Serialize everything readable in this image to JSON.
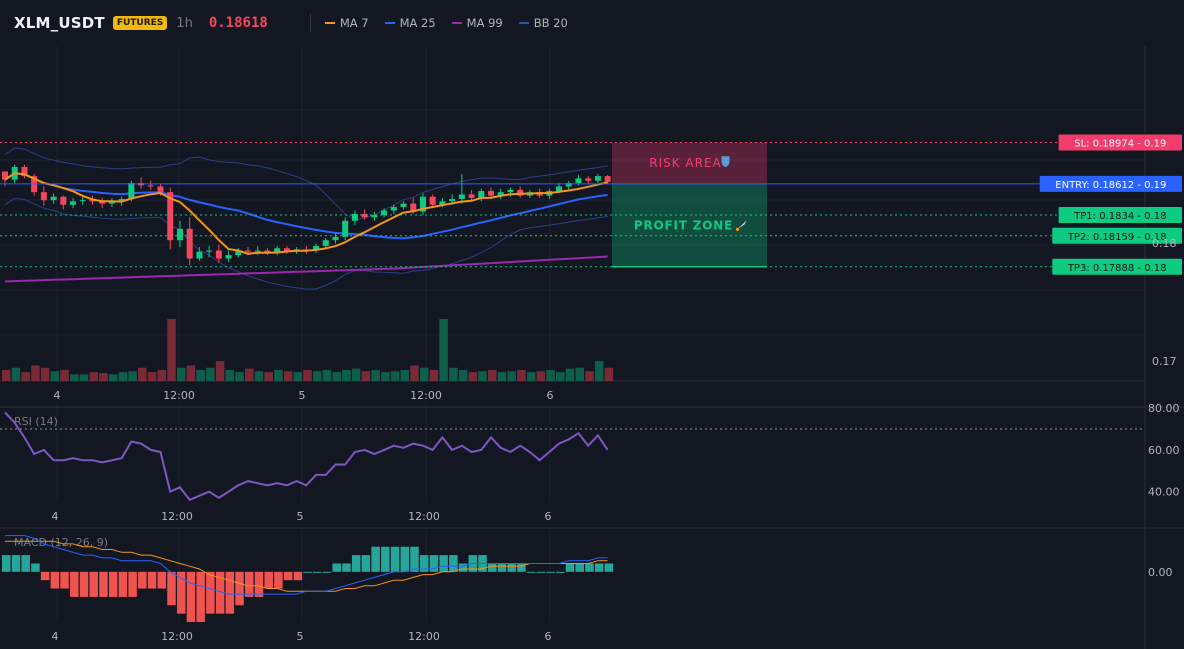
{
  "header": {
    "symbol": "XLM_USDT",
    "badge": "FUTURES",
    "timeframe": "1h",
    "price": "0.18618",
    "legend": [
      {
        "label": "MA 7",
        "color": "#f7931a"
      },
      {
        "label": "MA 25",
        "color": "#2962ff"
      },
      {
        "label": "MA 99",
        "color": "#9c27b0"
      },
      {
        "label": "BB 20",
        "color": "#3450a6"
      }
    ]
  },
  "colors": {
    "up": "#0ecb81",
    "down": "#f6465d",
    "background": "#131722",
    "grid": "#1e222d",
    "rsi": "#7e57c2",
    "macd": "#2962ff",
    "signal": "#f7931a"
  },
  "zones": {
    "risk_label": "RISK AREA",
    "profit_label": "PROFIT ZONE"
  },
  "chart_data": [
    {
      "type": "candlestick",
      "id": "price",
      "x_tick_labels": [
        "4",
        "12:00",
        "5",
        "12:00",
        "6"
      ],
      "ylim": [
        0.1689,
        0.1952
      ],
      "y_tick_labels": [
        "0.18",
        "0.17"
      ],
      "indicators": [
        "MA 7",
        "MA 25",
        "MA 99",
        "BB 20"
      ],
      "candles": [
        [
          0.1872,
          0.1872,
          0.1859,
          0.1865
        ],
        [
          0.1865,
          0.1878,
          0.1862,
          0.1876
        ],
        [
          0.1876,
          0.1878,
          0.1866,
          0.1868
        ],
        [
          0.1868,
          0.187,
          0.1851,
          0.1854
        ],
        [
          0.1854,
          0.1859,
          0.1842,
          0.1847
        ],
        [
          0.1847,
          0.1853,
          0.1844,
          0.185
        ],
        [
          0.185,
          0.1851,
          0.1839,
          0.1843
        ],
        [
          0.1843,
          0.1849,
          0.184,
          0.1846
        ],
        [
          0.1846,
          0.185,
          0.1843,
          0.1847
        ],
        [
          0.1847,
          0.1851,
          0.1843,
          0.1846
        ],
        [
          0.1846,
          0.1849,
          0.184,
          0.1844
        ],
        [
          0.1844,
          0.1849,
          0.1841,
          0.1846
        ],
        [
          0.1846,
          0.185,
          0.1842,
          0.1848
        ],
        [
          0.1848,
          0.1864,
          0.1846,
          0.1862
        ],
        [
          0.1862,
          0.1867,
          0.1857,
          0.186
        ],
        [
          0.186,
          0.1864,
          0.1856,
          0.1859
        ],
        [
          0.1859,
          0.1861,
          0.1851,
          0.1854
        ],
        [
          0.1854,
          0.1858,
          0.1804,
          0.1812
        ],
        [
          0.1812,
          0.1829,
          0.1806,
          0.1822
        ],
        [
          0.1822,
          0.1832,
          0.179,
          0.1796
        ],
        [
          0.1796,
          0.1806,
          0.1794,
          0.1802
        ],
        [
          0.1802,
          0.1807,
          0.1797,
          0.1803
        ],
        [
          0.1803,
          0.1808,
          0.1792,
          0.1796
        ],
        [
          0.1796,
          0.1803,
          0.1793,
          0.1799
        ],
        [
          0.1799,
          0.1805,
          0.1797,
          0.1803
        ],
        [
          0.1803,
          0.1806,
          0.1799,
          0.1802
        ],
        [
          0.1802,
          0.1807,
          0.1799,
          0.1803
        ],
        [
          0.1803,
          0.1805,
          0.1799,
          0.1801
        ],
        [
          0.1801,
          0.1807,
          0.1799,
          0.1805
        ],
        [
          0.1805,
          0.1807,
          0.18,
          0.1802
        ],
        [
          0.1802,
          0.1806,
          0.18,
          0.1804
        ],
        [
          0.1804,
          0.1807,
          0.18,
          0.1803
        ],
        [
          0.1803,
          0.1809,
          0.1801,
          0.1807
        ],
        [
          0.1807,
          0.1814,
          0.1805,
          0.1812
        ],
        [
          0.1812,
          0.1818,
          0.1809,
          0.1815
        ],
        [
          0.1815,
          0.1832,
          0.1812,
          0.1829
        ],
        [
          0.1829,
          0.1838,
          0.1825,
          0.1835
        ],
        [
          0.1835,
          0.1839,
          0.183,
          0.1832
        ],
        [
          0.1832,
          0.1837,
          0.1829,
          0.1834
        ],
        [
          0.1834,
          0.184,
          0.1832,
          0.1838
        ],
        [
          0.1838,
          0.1843,
          0.1835,
          0.1841
        ],
        [
          0.1841,
          0.1846,
          0.1839,
          0.1844
        ],
        [
          0.1844,
          0.1849,
          0.1835,
          0.1837
        ],
        [
          0.1837,
          0.1853,
          0.1834,
          0.185
        ],
        [
          0.185,
          0.1852,
          0.184,
          0.1843
        ],
        [
          0.1843,
          0.1849,
          0.1841,
          0.1846
        ],
        [
          0.1846,
          0.1852,
          0.1843,
          0.1848
        ],
        [
          0.1848,
          0.187,
          0.1844,
          0.1852
        ],
        [
          0.1852,
          0.1856,
          0.1847,
          0.1849
        ],
        [
          0.1849,
          0.1857,
          0.1846,
          0.1855
        ],
        [
          0.1855,
          0.1858,
          0.1848,
          0.1851
        ],
        [
          0.1851,
          0.1857,
          0.1848,
          0.1854
        ],
        [
          0.1854,
          0.1858,
          0.185,
          0.1856
        ],
        [
          0.1856,
          0.1859,
          0.1849,
          0.1851
        ],
        [
          0.1851,
          0.1856,
          0.1849,
          0.1854
        ],
        [
          0.1854,
          0.1857,
          0.1849,
          0.1851
        ],
        [
          0.1851,
          0.1857,
          0.1848,
          0.1855
        ],
        [
          0.1855,
          0.1862,
          0.1853,
          0.1859
        ],
        [
          0.1859,
          0.1864,
          0.1856,
          0.1862
        ],
        [
          0.1862,
          0.1869,
          0.186,
          0.1866
        ],
        [
          0.1866,
          0.1868,
          0.1861,
          0.1864
        ],
        [
          0.1864,
          0.187,
          0.1862,
          0.1868
        ],
        [
          0.1868,
          0.1869,
          0.1861,
          0.1863
        ]
      ],
      "volume_ratio": [
        0.25,
        0.3,
        0.2,
        0.35,
        0.3,
        0.22,
        0.25,
        0.15,
        0.15,
        0.2,
        0.18,
        0.15,
        0.2,
        0.22,
        0.3,
        0.2,
        0.25,
        1.4,
        0.3,
        0.35,
        0.25,
        0.3,
        0.45,
        0.25,
        0.2,
        0.28,
        0.22,
        0.2,
        0.25,
        0.22,
        0.2,
        0.25,
        0.22,
        0.25,
        0.2,
        0.25,
        0.28,
        0.22,
        0.25,
        0.2,
        0.22,
        0.25,
        0.35,
        0.3,
        0.25,
        1.4,
        0.3,
        0.25,
        0.2,
        0.22,
        0.25,
        0.2,
        0.22,
        0.25,
        0.2,
        0.22,
        0.25,
        0.2,
        0.28,
        0.3,
        0.22,
        0.45,
        0.3
      ],
      "levels": [
        {
          "name": "SL",
          "label": "SL: 0.18974",
          "axis": "0.19",
          "value": 0.18974,
          "color": "#f23c6c"
        },
        {
          "name": "ENTRY",
          "label": "ENTRY: 0.18612",
          "axis": "0.19",
          "value": 0.18612,
          "color": "#2962ff"
        },
        {
          "name": "TP1",
          "label": "TP1: 0.1834",
          "axis": "0.18",
          "value": 0.1834,
          "color": "#0ecb81"
        },
        {
          "name": "TP2",
          "label": "TP2: 0.18159",
          "axis": "0.18",
          "value": 0.18159,
          "color": "#0ecb81"
        },
        {
          "name": "TP3",
          "label": "TP3: 0.17888",
          "axis": "0.18",
          "value": 0.17888,
          "color": "#0ecb81"
        }
      ]
    },
    {
      "type": "line",
      "id": "rsi",
      "title": "RSI (14)",
      "ylim": [
        35,
        82
      ],
      "y_tick_labels": [
        "80.00",
        "60.00",
        "40.00"
      ],
      "reference_line": 70,
      "values": [
        78,
        73,
        66,
        58,
        60,
        55,
        55,
        56,
        55,
        55,
        54,
        55,
        56,
        64,
        63,
        60,
        59,
        40,
        42,
        36,
        38,
        40,
        37,
        40,
        43,
        45,
        44,
        43,
        44,
        43,
        45,
        43,
        48,
        48,
        53,
        53,
        59,
        60,
        58,
        60,
        62,
        61,
        63,
        62,
        60,
        66,
        60,
        62,
        59,
        60,
        66,
        61,
        59,
        62,
        59,
        55,
        59,
        63,
        65,
        68,
        62,
        67,
        60
      ],
      "x_tick_labels": [
        "4",
        "12:00",
        "5",
        "12:00",
        "6"
      ]
    },
    {
      "type": "line",
      "id": "macd",
      "title": "MACD (12, 26, 9)",
      "y_tick_labels": [
        "0.00"
      ],
      "ylim": [
        -0.0018,
        0.0015
      ],
      "macd": [
        0.0013,
        0.0013,
        0.0013,
        0.0012,
        0.001,
        0.0009,
        0.0008,
        0.0007,
        0.0006,
        0.0006,
        0.0005,
        0.0005,
        0.0004,
        0.0004,
        0.0004,
        0.0004,
        0.0003,
        0.0,
        -0.0002,
        -0.0004,
        -0.0005,
        -0.0006,
        -0.0007,
        -0.0008,
        -0.0008,
        -0.0008,
        -0.0008,
        -0.0008,
        -0.0008,
        -0.0008,
        -0.0008,
        -0.0007,
        -0.0007,
        -0.0007,
        -0.0006,
        -0.0005,
        -0.0004,
        -0.0003,
        -0.0002,
        -0.0001,
        0.0,
        0.0,
        0.0001,
        0.0001,
        0.0001,
        0.0002,
        0.0002,
        0.0002,
        0.0003,
        0.0003,
        0.0003,
        0.0003,
        0.0003,
        0.0003,
        0.0003,
        0.0003,
        0.0003,
        0.0003,
        0.0004,
        0.0004,
        0.0004,
        0.0005,
        0.0005
      ],
      "signal": [
        0.0011,
        0.0011,
        0.0011,
        0.0011,
        0.0011,
        0.0011,
        0.001,
        0.001,
        0.0009,
        0.0009,
        0.0008,
        0.0008,
        0.0007,
        0.0007,
        0.0006,
        0.0006,
        0.0005,
        0.0004,
        0.0003,
        0.0002,
        0.0001,
        -0.0001,
        -0.0002,
        -0.0003,
        -0.0004,
        -0.0005,
        -0.0005,
        -0.0006,
        -0.0006,
        -0.0007,
        -0.0007,
        -0.0007,
        -0.0007,
        -0.0007,
        -0.0007,
        -0.0006,
        -0.0006,
        -0.0005,
        -0.0005,
        -0.0004,
        -0.0003,
        -0.0003,
        -0.0002,
        -0.0001,
        -0.0001,
        0.0,
        0.0,
        0.0001,
        0.0001,
        0.0001,
        0.0002,
        0.0002,
        0.0002,
        0.0002,
        0.0003,
        0.0003,
        0.0003,
        0.0003,
        0.0003,
        0.0003,
        0.0003,
        0.0004,
        0.0004
      ],
      "x_tick_labels": [
        "4",
        "12:00",
        "5",
        "12:00",
        "6"
      ]
    }
  ]
}
